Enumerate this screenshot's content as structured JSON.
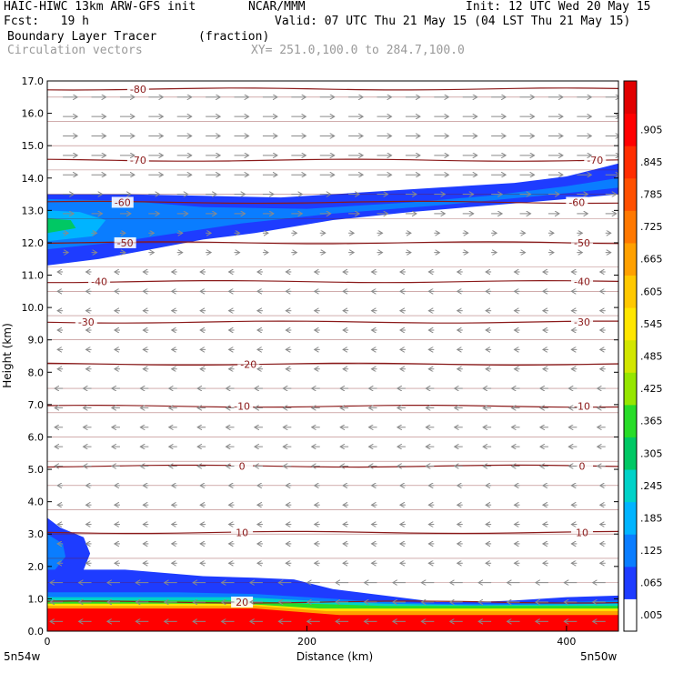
{
  "header": {
    "model": "HAIC-HIWC 13km ARW-GFS init",
    "org": "NCAR/MMM",
    "init": "Init: 12 UTC Wed 20 May 15",
    "fcst": "Fcst:   19 h",
    "valid": "Valid: 07 UTC Thu 21 May 15 (04 LST Thu 21 May 15)",
    "field": "Boundary Layer Tracer",
    "units": "(fraction)",
    "vectors": "Circulation vectors",
    "xy": "XY= 251.0,100.0 to 284.7,100.0"
  },
  "chart_data": {
    "type": "heatmap",
    "xlabel": "Distance (km)",
    "ylabel": "Height (km)",
    "xlim": [
      0,
      440
    ],
    "ylim": [
      0,
      17
    ],
    "x_ticks": [
      "0",
      "200",
      "400"
    ],
    "y_ticks": [
      "0.0",
      "1.0",
      "2.0",
      "3.0",
      "4.0",
      "5.0",
      "6.0",
      "7.0",
      "8.0",
      "9.0",
      "10.0",
      "11.0",
      "12.0",
      "13.0",
      "14.0",
      "15.0",
      "16.0",
      "17.0"
    ],
    "x_end_labels": {
      "left": "5n54w",
      "right": "5n50w"
    },
    "colorbar": {
      "labels": [
        ".005",
        ".065",
        ".125",
        ".185",
        ".245",
        ".305",
        ".365",
        ".425",
        ".485",
        ".545",
        ".605",
        ".665",
        ".725",
        ".785",
        ".845",
        ".905"
      ],
      "colors": [
        "#ffffff",
        "#1e3cff",
        "#0a7dff",
        "#00b4ff",
        "#00d2c8",
        "#00c864",
        "#28dc28",
        "#96e600",
        "#d2e600",
        "#ffe600",
        "#ffc800",
        "#ffa000",
        "#ff7800",
        "#ff5000",
        "#ff2d00",
        "#ff0000",
        "#e10000"
      ]
    },
    "temperature_contours": [
      {
        "label": "20",
        "y": 0.9,
        "label_x": [
          150
        ]
      },
      {
        "label": "10",
        "y": 3.05,
        "label_x": [
          150,
          412
        ]
      },
      {
        "label": "0",
        "y": 5.1,
        "label_x": [
          150,
          412
        ]
      },
      {
        "label": "-10",
        "y": 6.95,
        "label_x": [
          150,
          412
        ]
      },
      {
        "label": "-20",
        "y": 8.25,
        "label_x": [
          155
        ]
      },
      {
        "label": "-30",
        "y": 9.55,
        "label_x": [
          30,
          412
        ]
      },
      {
        "label": "-40",
        "y": 10.8,
        "label_x": [
          40,
          412
        ]
      },
      {
        "label": "-50",
        "y": 12.0,
        "label_x": [
          60,
          412
        ]
      },
      {
        "label": "-60",
        "y": 13.25,
        "label_x": [
          58,
          408
        ]
      },
      {
        "label": "-70",
        "y": 14.55,
        "label_x": [
          70,
          422
        ]
      },
      {
        "label": "-80",
        "y": 16.75,
        "label_x": [
          70
        ]
      }
    ]
  }
}
